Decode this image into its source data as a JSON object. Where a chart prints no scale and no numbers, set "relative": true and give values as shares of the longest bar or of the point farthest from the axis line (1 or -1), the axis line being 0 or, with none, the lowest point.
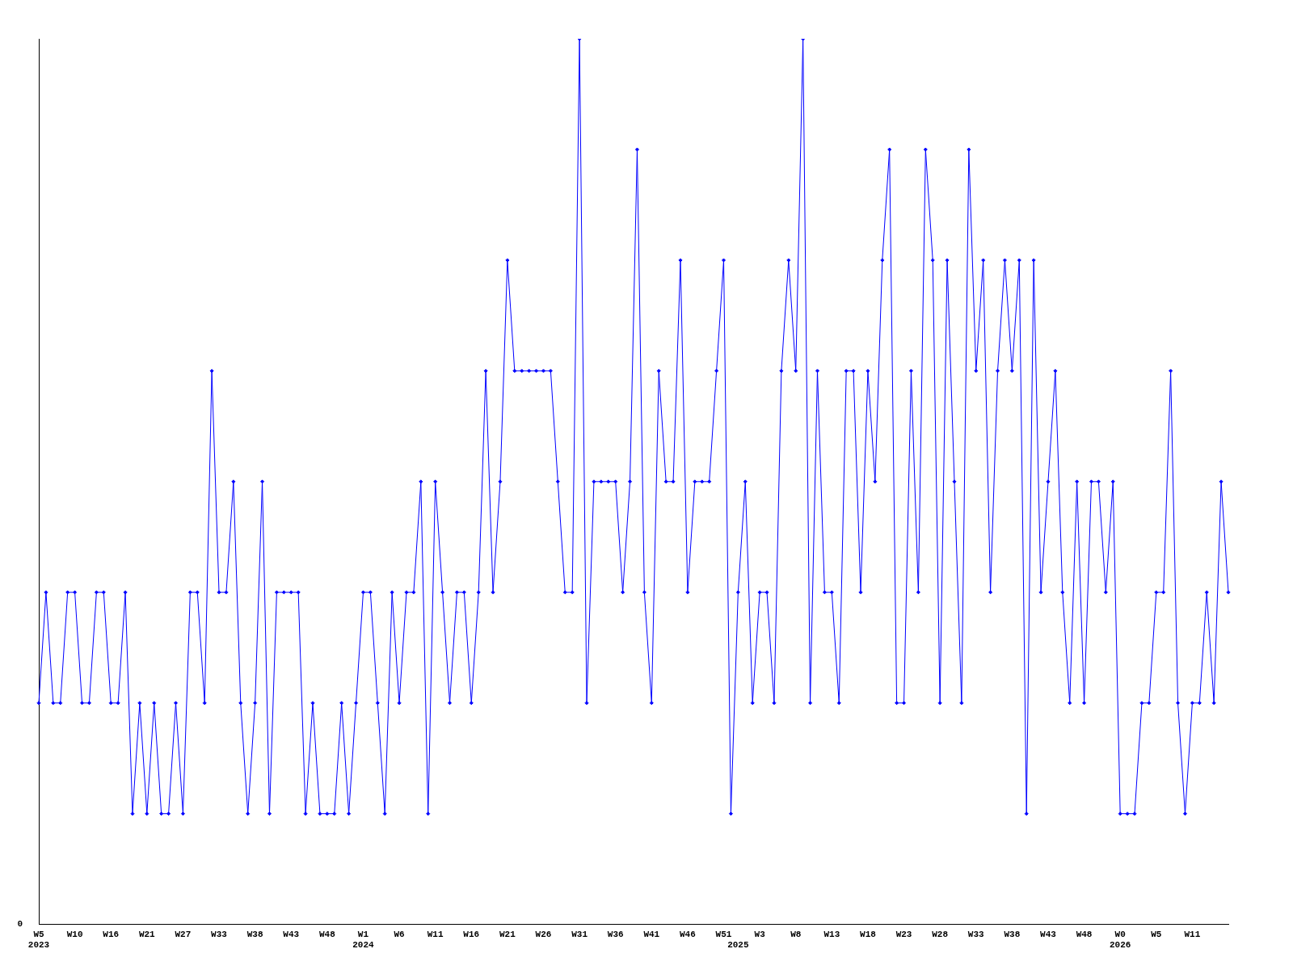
{
  "chart_data": {
    "type": "line",
    "relative": true,
    "color": "#0000ff",
    "marker": "diamond",
    "line_style": "solid",
    "grid": false,
    "legend": false,
    "annotations": [
      "0"
    ],
    "categories": [
      "W5\n2023",
      null,
      null,
      null,
      null,
      "W10",
      null,
      null,
      null,
      null,
      "W16",
      null,
      null,
      null,
      null,
      "W21",
      null,
      null,
      null,
      null,
      "W27",
      null,
      null,
      null,
      null,
      "W33",
      null,
      null,
      null,
      null,
      "W38",
      null,
      null,
      null,
      null,
      "W43",
      null,
      null,
      null,
      null,
      "W48",
      null,
      null,
      null,
      null,
      "W1\n2024",
      null,
      null,
      null,
      null,
      "W6",
      null,
      null,
      null,
      null,
      "W11",
      null,
      null,
      null,
      null,
      "W16",
      null,
      null,
      null,
      null,
      "W21",
      null,
      null,
      null,
      null,
      "W26",
      null,
      null,
      null,
      null,
      "W31",
      null,
      null,
      null,
      null,
      "W36",
      null,
      null,
      null,
      null,
      "W41",
      null,
      null,
      null,
      null,
      "W46",
      null,
      null,
      null,
      null,
      "W51",
      null,
      "\n2025",
      null,
      null,
      "W3",
      null,
      null,
      null,
      null,
      "W8",
      null,
      null,
      null,
      null,
      "W13",
      null,
      null,
      null,
      null,
      "W18",
      null,
      null,
      null,
      null,
      "W23",
      null,
      null,
      null,
      null,
      "W28",
      null,
      null,
      null,
      null,
      "W33",
      null,
      null,
      null,
      null,
      "W38",
      null,
      null,
      null,
      null,
      "W43",
      null,
      null,
      null,
      null,
      "W48",
      null,
      null,
      null,
      null,
      "W0\n2026",
      null,
      null,
      null,
      null,
      "W5",
      null,
      null,
      null,
      null,
      "W11",
      null,
      null,
      null,
      null,
      null
    ],
    "values": [
      0.25,
      0.375,
      0.25,
      0.25,
      0.375,
      0.375,
      0.25,
      0.25,
      0.375,
      0.375,
      0.25,
      0.25,
      0.375,
      0.125,
      0.25,
      0.125,
      0.25,
      0.125,
      0.125,
      0.25,
      0.125,
      0.375,
      0.375,
      0.25,
      0.625,
      0.375,
      0.375,
      0.5,
      0.25,
      0.125,
      0.25,
      0.5,
      0.125,
      0.375,
      0.375,
      0.375,
      0.375,
      0.125,
      0.25,
      0.125,
      0.125,
      0.125,
      0.25,
      0.125,
      0.25,
      0.375,
      0.375,
      0.25,
      0.125,
      0.375,
      0.25,
      0.375,
      0.375,
      0.5,
      0.125,
      0.5,
      0.375,
      0.25,
      0.375,
      0.375,
      0.25,
      0.375,
      0.625,
      0.375,
      0.5,
      0.75,
      0.625,
      0.625,
      0.625,
      0.625,
      0.625,
      0.625,
      0.5,
      0.375,
      0.375,
      1,
      0.25,
      0.5,
      0.5,
      0.5,
      0.5,
      0.375,
      0.5,
      0.875,
      0.375,
      0.25,
      0.625,
      0.5,
      0.5,
      0.75,
      0.375,
      0.5,
      0.5,
      0.5,
      0.625,
      0.75,
      0.125,
      0.375,
      0.5,
      0.25,
      0.375,
      0.375,
      0.25,
      0.625,
      0.75,
      0.625,
      1,
      0.25,
      0.625,
      0.375,
      0.375,
      0.25,
      0.625,
      0.625,
      0.375,
      0.625,
      0.5,
      0.75,
      0.875,
      0.25,
      0.25,
      0.625,
      0.375,
      0.875,
      0.75,
      0.25,
      0.75,
      0.5,
      0.25,
      0.875,
      0.625,
      0.75,
      0.375,
      0.625,
      0.75,
      0.625,
      0.75,
      0.125,
      0.75,
      0.375,
      0.5,
      0.625,
      0.375,
      0.25,
      0.5,
      0.25,
      0.5,
      0.5,
      0.375,
      0.5,
      0.125,
      0.125,
      0.125,
      0.25,
      0.25,
      0.375,
      0.375,
      0.625,
      0.25,
      0.125,
      0.25,
      0.25,
      0.375,
      0.25,
      0.5,
      0.375
    ]
  }
}
